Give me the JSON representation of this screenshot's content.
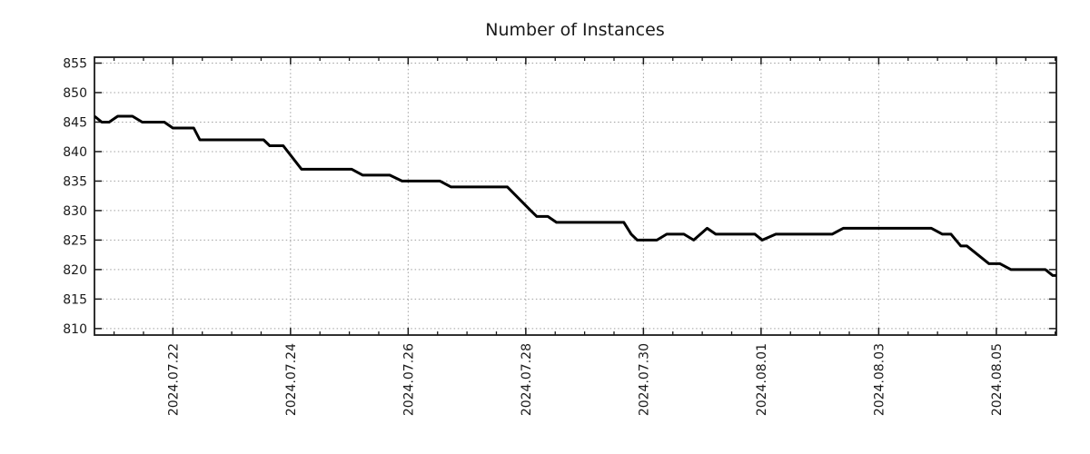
{
  "page": {
    "background": "#ffffff"
  },
  "chart_data": {
    "type": "line",
    "title": "Number of Instances",
    "text_color": "#1a1a1a",
    "frame_color": "#1a1a1a",
    "grid": {
      "color": "#a0a0a0",
      "style": "dotted",
      "enabled": true
    },
    "legend": {
      "visible": false
    },
    "y_axis": {
      "min": 808.9,
      "max": 856.0,
      "ticks": [
        855,
        850,
        845,
        840,
        835,
        830,
        825,
        820,
        815,
        810
      ]
    },
    "x_axis": {
      "start": "2024-07-20T16:00",
      "end": "2024-08-06T00:30",
      "minor_tick_interval_hours": 12,
      "major_ticks": [
        {
          "label": "2024.07.22",
          "date": "2024-07-22T00:00"
        },
        {
          "label": "2024.07.24",
          "date": "2024-07-24T00:00"
        },
        {
          "label": "2024.07.26",
          "date": "2024-07-26T00:00"
        },
        {
          "label": "2024.07.28",
          "date": "2024-07-28T00:00"
        },
        {
          "label": "2024.07.30",
          "date": "2024-07-30T00:00"
        },
        {
          "label": "2024.08.01",
          "date": "2024-08-01T00:00"
        },
        {
          "label": "2024.08.03",
          "date": "2024-08-03T00:00"
        },
        {
          "label": "2024.08.05",
          "date": "2024-08-05T00:00"
        }
      ]
    },
    "series": [
      {
        "name": "instances",
        "color": "#000000",
        "line_width": 3,
        "points": [
          [
            "2024-07-20T16:00",
            846
          ],
          [
            "2024-07-20T19:00",
            845
          ],
          [
            "2024-07-20T22:00",
            845
          ],
          [
            "2024-07-21T01:30",
            846
          ],
          [
            "2024-07-21T07:30",
            846
          ],
          [
            "2024-07-21T11:30",
            845
          ],
          [
            "2024-07-21T20:30",
            845
          ],
          [
            "2024-07-22T00:00",
            844
          ],
          [
            "2024-07-22T08:30",
            844
          ],
          [
            "2024-07-22T11:00",
            842
          ],
          [
            "2024-07-23T13:00",
            842
          ],
          [
            "2024-07-23T15:30",
            841
          ],
          [
            "2024-07-23T21:00",
            841
          ],
          [
            "2024-07-24T04:30",
            837
          ],
          [
            "2024-07-25T01:00",
            837
          ],
          [
            "2024-07-25T05:30",
            836
          ],
          [
            "2024-07-25T16:30",
            836
          ],
          [
            "2024-07-25T21:30",
            835
          ],
          [
            "2024-07-26T13:00",
            835
          ],
          [
            "2024-07-26T17:30",
            834
          ],
          [
            "2024-07-27T16:30",
            834
          ],
          [
            "2024-07-28T02:00",
            830
          ],
          [
            "2024-07-28T04:30",
            829
          ],
          [
            "2024-07-28T09:00",
            829
          ],
          [
            "2024-07-28T12:30",
            828
          ],
          [
            "2024-07-29T16:00",
            828
          ],
          [
            "2024-07-29T19:00",
            826
          ],
          [
            "2024-07-29T21:30",
            825
          ],
          [
            "2024-07-30T05:30",
            825
          ],
          [
            "2024-07-30T09:30",
            826
          ],
          [
            "2024-07-30T16:30",
            826
          ],
          [
            "2024-07-30T20:30",
            825
          ],
          [
            "2024-07-31T02:00",
            827
          ],
          [
            "2024-07-31T05:30",
            826
          ],
          [
            "2024-07-31T21:30",
            826
          ],
          [
            "2024-08-01T00:30",
            825
          ],
          [
            "2024-08-01T06:00",
            826
          ],
          [
            "2024-08-02T05:00",
            826
          ],
          [
            "2024-08-02T09:30",
            827
          ],
          [
            "2024-08-03T21:30",
            827
          ],
          [
            "2024-08-04T02:00",
            826
          ],
          [
            "2024-08-04T05:30",
            826
          ],
          [
            "2024-08-04T09:30",
            824
          ],
          [
            "2024-08-04T12:00",
            824
          ],
          [
            "2024-08-04T21:00",
            821
          ],
          [
            "2024-08-05T01:30",
            821
          ],
          [
            "2024-08-05T06:00",
            820
          ],
          [
            "2024-08-05T20:00",
            820
          ],
          [
            "2024-08-05T23:00",
            819
          ],
          [
            "2024-08-06T00:30",
            819
          ]
        ]
      }
    ]
  }
}
